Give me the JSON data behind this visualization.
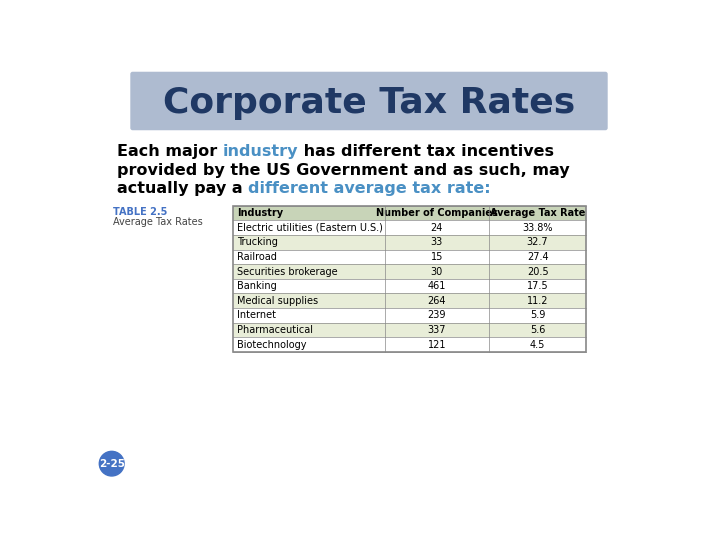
{
  "title": "Corporate Tax Rates",
  "title_color": "#1F3864",
  "title_bg_color": "#AEBBD0",
  "table_label": "TABLE 2.5",
  "table_sublabel": "Average Tax Rates",
  "table_label_color": "#4472C4",
  "table_headers": [
    "Industry",
    "Number of Companies",
    "Average Tax Rate"
  ],
  "table_data": [
    [
      "Electric utilities (Eastern U.S.)",
      "24",
      "33.8%"
    ],
    [
      "Trucking",
      "33",
      "32.7"
    ],
    [
      "Railroad",
      "15",
      "27.4"
    ],
    [
      "Securities brokerage",
      "30",
      "20.5"
    ],
    [
      "Banking",
      "461",
      "17.5"
    ],
    [
      "Medical supplies",
      "264",
      "11.2"
    ],
    [
      "Internet",
      "239",
      "5.9"
    ],
    [
      "Pharmaceutical",
      "337",
      "5.6"
    ],
    [
      "Biotechnology",
      "121",
      "4.5"
    ]
  ],
  "row_colors_alt": [
    "#FFFFFF",
    "#E8EDD8"
  ],
  "header_bg": "#C8D4B8",
  "table_border_color": "#888888",
  "bg_color": "#FFFFFF",
  "page_label": "2-25",
  "page_label_bg": "#4472C4",
  "page_label_color": "#FFFFFF",
  "subtitle_line1_parts": [
    [
      "Each major ",
      "#000000"
    ],
    [
      "industry",
      "#4A90C4"
    ],
    [
      " has different tax incentives",
      "#000000"
    ]
  ],
  "subtitle_line2_parts": [
    [
      "provided by the US Government and as such, may",
      "#000000"
    ]
  ],
  "subtitle_line3_parts": [
    [
      "actually pay a ",
      "#000000"
    ],
    [
      "different average tax rate:",
      "#4A90C4"
    ]
  ]
}
